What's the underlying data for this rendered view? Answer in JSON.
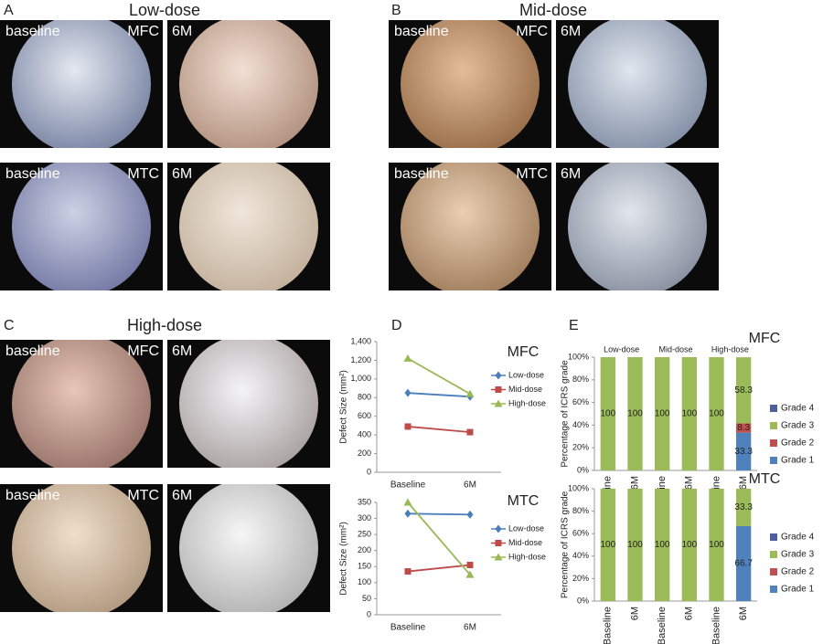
{
  "panels": [
    {
      "letter": "A",
      "title": "Low-dose",
      "rows": [
        {
          "left_label": "baseline",
          "site": "MFC",
          "right_label": "6M"
        },
        {
          "left_label": "baseline",
          "site": "MTC",
          "right_label": "6M"
        }
      ]
    },
    {
      "letter": "B",
      "title": "Mid-dose",
      "rows": [
        {
          "left_label": "baseline",
          "site": "MFC",
          "right_label": "6M"
        },
        {
          "left_label": "baseline",
          "site": "MTC",
          "right_label": "6M"
        }
      ]
    },
    {
      "letter": "C",
      "title": "High-dose",
      "rows": [
        {
          "left_label": "baseline",
          "site": "MFC",
          "right_label": "6M"
        },
        {
          "left_label": "baseline",
          "site": "MTC",
          "right_label": "6M"
        }
      ]
    }
  ],
  "chart_letters": [
    "D",
    "E"
  ],
  "chart_data": [
    {
      "type": "line",
      "title": "MFC",
      "ylabel": "Defect Size (mm²)",
      "categories": [
        "Baseline",
        "6M"
      ],
      "series": [
        {
          "name": "Low-dose",
          "color": "#4a7ebb",
          "marker": "diamond",
          "values": [
            850,
            810
          ]
        },
        {
          "name": "Mid-dose",
          "color": "#be4b48",
          "marker": "square",
          "values": [
            490,
            430
          ]
        },
        {
          "name": "High-dose",
          "color": "#98b954",
          "marker": "triangle",
          "values": [
            1220,
            840
          ]
        }
      ],
      "ylim": [
        0,
        1400
      ],
      "yticks": [
        0,
        200,
        400,
        600,
        800,
        {
          "value": 1000,
          "label": "1,000"
        },
        {
          "value": 1200,
          "label": "1,200"
        },
        {
          "value": 1400,
          "label": "1,400"
        }
      ],
      "legend": "right"
    },
    {
      "type": "line",
      "title": "MTC",
      "ylabel": "Defect Size (mm²)",
      "categories": [
        "Baseline",
        "6M"
      ],
      "series": [
        {
          "name": "Low-dose",
          "color": "#4a7ebb",
          "marker": "diamond",
          "values": [
            315,
            312
          ]
        },
        {
          "name": "Mid-dose",
          "color": "#be4b48",
          "marker": "square",
          "values": [
            135,
            155
          ]
        },
        {
          "name": "High-dose",
          "color": "#98b954",
          "marker": "triangle",
          "values": [
            350,
            125
          ]
        }
      ],
      "ylim": [
        0,
        350
      ],
      "yticks": [
        0,
        50,
        100,
        150,
        200,
        250,
        300,
        350
      ],
      "legend": "right"
    },
    {
      "type": "stacked_bar",
      "title": "MFC",
      "ylabel": "Percentage of ICRS grade",
      "categories": [
        "Baseline",
        "6M",
        "Baseline",
        "6M",
        "Baseline",
        "6M"
      ],
      "groups": [
        "Low-dose",
        "Mid-dose",
        "High-dose"
      ],
      "series": [
        {
          "name": "Grade 1",
          "color": "#4f81bd",
          "values": [
            0,
            0,
            0,
            0,
            0,
            33.3
          ]
        },
        {
          "name": "Grade 2",
          "color": "#c0504d",
          "values": [
            0,
            0,
            0,
            0,
            0,
            8.3
          ]
        },
        {
          "name": "Grade 3",
          "color": "#9bbb59",
          "values": [
            100,
            100,
            100,
            100,
            100,
            58.3
          ]
        },
        {
          "name": "Grade 4",
          "color": "#4f5f9f",
          "values": [
            0,
            0,
            0,
            0,
            0,
            0
          ]
        }
      ],
      "ylim": [
        0,
        100
      ],
      "yticks": [
        {
          "value": 0,
          "label": "0%"
        },
        {
          "value": 20,
          "label": "20%"
        },
        {
          "value": 40,
          "label": "40%"
        },
        {
          "value": 60,
          "label": "60%"
        },
        {
          "value": 80,
          "label": "80%"
        },
        {
          "value": 100,
          "label": "100%"
        }
      ],
      "legend": "right"
    },
    {
      "type": "stacked_bar",
      "title": "MTC",
      "ylabel": "Percentage of ICRS grade",
      "categories": [
        "Baseline",
        "6M",
        "Baseline",
        "6M",
        "Baseline",
        "6M"
      ],
      "series": [
        {
          "name": "Grade 1",
          "color": "#4f81bd",
          "values": [
            0,
            0,
            0,
            0,
            0,
            66.7
          ]
        },
        {
          "name": "Grade 2",
          "color": "#c0504d",
          "values": [
            0,
            0,
            0,
            0,
            0,
            0
          ]
        },
        {
          "name": "Grade 3",
          "color": "#9bbb59",
          "values": [
            100,
            100,
            100,
            100,
            100,
            33.3
          ]
        },
        {
          "name": "Grade 4",
          "color": "#4f5f9f",
          "values": [
            0,
            0,
            0,
            0,
            0,
            0
          ]
        }
      ],
      "ylim": [
        0,
        100
      ],
      "yticks": [
        {
          "value": 0,
          "label": "0%"
        },
        {
          "value": 20,
          "label": "20%"
        },
        {
          "value": 40,
          "label": "40%"
        },
        {
          "value": 60,
          "label": "60%"
        },
        {
          "value": 80,
          "label": "80%"
        },
        {
          "value": 100,
          "label": "100%"
        }
      ],
      "legend": "right"
    }
  ]
}
